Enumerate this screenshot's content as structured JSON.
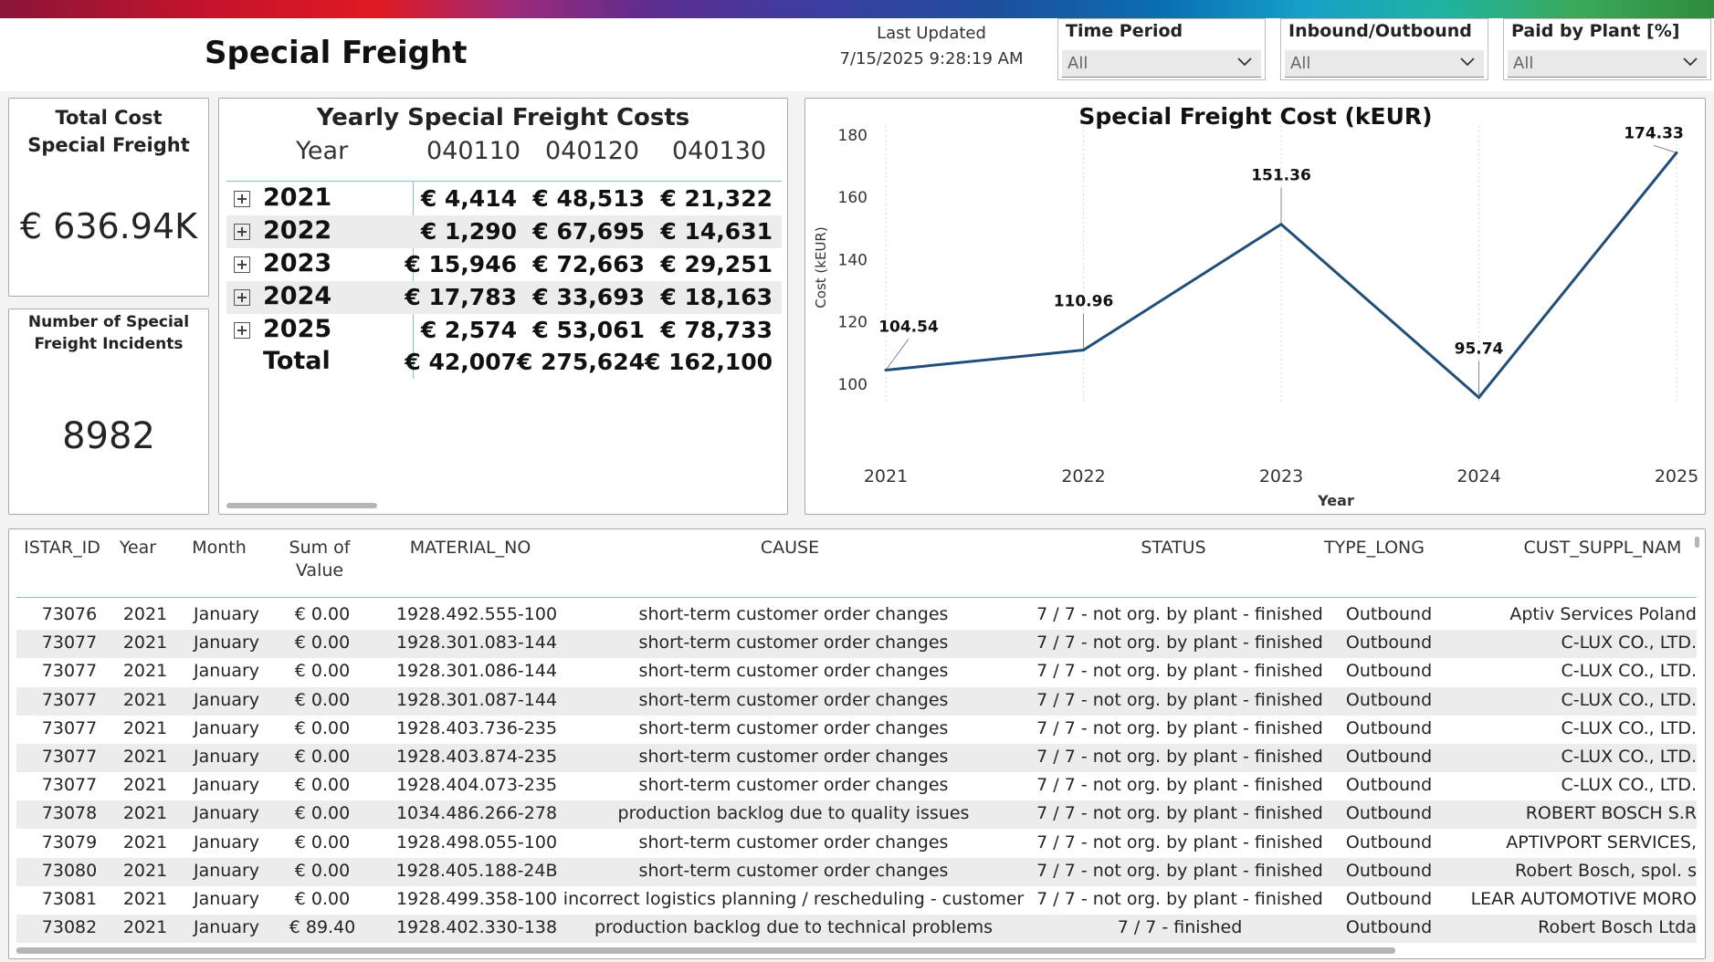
{
  "header": {
    "title": "Special Freight",
    "last_updated_label": "Last Updated",
    "last_updated_value": "7/15/2025 9:28:19 AM"
  },
  "slicers": [
    {
      "label": "Time Period",
      "value": "All"
    },
    {
      "label": "Inbound/Outbound",
      "value": "All"
    },
    {
      "label": "Paid by Plant [%]",
      "value": "All"
    }
  ],
  "kpi_total": {
    "label": "Total Cost Special Freight",
    "value": "€ 636.94K"
  },
  "kpi_incidents": {
    "label": "Number of Special Freight Incidents",
    "value": "8982"
  },
  "matrix": {
    "title": "Yearly Special Freight Costs",
    "columns": [
      "Year",
      "040110",
      "040120",
      "040130"
    ],
    "rows": [
      {
        "year": "2021",
        "v": [
          "€ 4,414",
          "€ 48,513",
          "€ 21,322"
        ]
      },
      {
        "year": "2022",
        "v": [
          "€ 1,290",
          "€ 67,695",
          "€ 14,631"
        ]
      },
      {
        "year": "2023",
        "v": [
          "€ 15,946",
          "€ 72,663",
          "€ 29,251"
        ]
      },
      {
        "year": "2024",
        "v": [
          "€ 17,783",
          "€ 33,693",
          "€ 18,163"
        ]
      },
      {
        "year": "2025",
        "v": [
          "€ 2,574",
          "€ 53,061",
          "€ 78,733"
        ]
      }
    ],
    "total": {
      "label": "Total",
      "v": [
        "€ 42,007",
        "€ 275,624",
        "€ 162,100"
      ]
    }
  },
  "chart_data": {
    "type": "line",
    "title": "Special Freight Cost (kEUR)",
    "xlabel": "Year",
    "ylabel": "Cost (kEUR)",
    "x": [
      "2021",
      "2022",
      "2023",
      "2024",
      "2025"
    ],
    "series": [
      {
        "values": [
          104.54,
          110.96,
          151.36,
          95.74,
          174.33
        ]
      }
    ],
    "data_labels": [
      "104.54",
      "110.96",
      "151.36",
      "95.74",
      "174.33"
    ],
    "yticks": [
      100,
      120,
      140,
      160,
      180
    ],
    "ylim": [
      95,
      180
    ],
    "grid": "vertical dotted",
    "color": "#1f4e79"
  },
  "table": {
    "columns": [
      "ISTAR_ID",
      "Year",
      "Month",
      "Sum of Value",
      "MATERIAL_NO",
      "CAUSE",
      "STATUS",
      "TYPE_LONG",
      "CUST_SUPPL_NAM"
    ],
    "rows": [
      [
        "73076",
        "2021",
        "January",
        "€ 0.00",
        "1928.492.555-100",
        "short-term customer order changes",
        "7 / 7 - not org. by plant - finished",
        "Outbound",
        "Aptiv Services Poland"
      ],
      [
        "73077",
        "2021",
        "January",
        "€ 0.00",
        "1928.301.083-144",
        "short-term customer order changes",
        "7 / 7 - not org. by plant - finished",
        "Outbound",
        "C-LUX CO., LTD."
      ],
      [
        "73077",
        "2021",
        "January",
        "€ 0.00",
        "1928.301.086-144",
        "short-term customer order changes",
        "7 / 7 - not org. by plant - finished",
        "Outbound",
        "C-LUX CO., LTD."
      ],
      [
        "73077",
        "2021",
        "January",
        "€ 0.00",
        "1928.301.087-144",
        "short-term customer order changes",
        "7 / 7 - not org. by plant - finished",
        "Outbound",
        "C-LUX CO., LTD."
      ],
      [
        "73077",
        "2021",
        "January",
        "€ 0.00",
        "1928.403.736-235",
        "short-term customer order changes",
        "7 / 7 - not org. by plant - finished",
        "Outbound",
        "C-LUX CO., LTD."
      ],
      [
        "73077",
        "2021",
        "January",
        "€ 0.00",
        "1928.403.874-235",
        "short-term customer order changes",
        "7 / 7 - not org. by plant - finished",
        "Outbound",
        "C-LUX CO., LTD."
      ],
      [
        "73077",
        "2021",
        "January",
        "€ 0.00",
        "1928.404.073-235",
        "short-term customer order changes",
        "7 / 7 - not org. by plant - finished",
        "Outbound",
        "C-LUX CO., LTD."
      ],
      [
        "73078",
        "2021",
        "January",
        "€ 0.00",
        "1034.486.266-278",
        "production backlog due to quality issues",
        "7 / 7 - not org. by plant - finished",
        "Outbound",
        "ROBERT BOSCH S.R"
      ],
      [
        "73079",
        "2021",
        "January",
        "€ 0.00",
        "1928.498.055-100",
        "short-term customer order changes",
        "7 / 7 - not org. by plant - finished",
        "Outbound",
        "APTIVPORT SERVICES,"
      ],
      [
        "73080",
        "2021",
        "January",
        "€ 0.00",
        "1928.405.188-24B",
        "short-term customer order changes",
        "7 / 7 - not org. by plant - finished",
        "Outbound",
        "Robert Bosch, spol. s"
      ],
      [
        "73081",
        "2021",
        "January",
        "€ 0.00",
        "1928.499.358-100",
        "incorrect logistics planning / rescheduling - customer",
        "7 / 7 - not org. by plant - finished",
        "Outbound",
        "LEAR AUTOMOTIVE MORO"
      ],
      [
        "73082",
        "2021",
        "January",
        "€ 89.40",
        "1928.402.330-138",
        "production backlog due to technical problems",
        "7 / 7 - finished",
        "Outbound",
        "Robert Bosch Ltda"
      ]
    ]
  }
}
